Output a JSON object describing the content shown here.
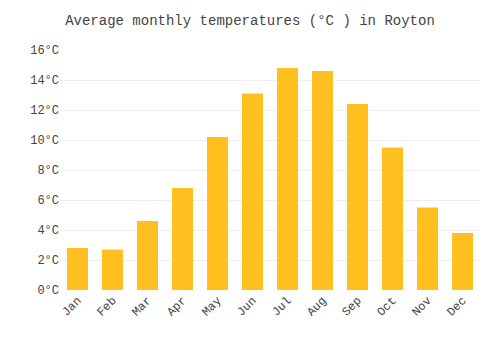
{
  "chart_data": {
    "type": "bar",
    "title": "Average monthly temperatures (°C ) in Royton",
    "categories": [
      "Jan",
      "Feb",
      "Mar",
      "Apr",
      "May",
      "Jun",
      "Jul",
      "Aug",
      "Sep",
      "Oct",
      "Nov",
      "Dec"
    ],
    "values": [
      2.8,
      2.7,
      4.6,
      6.8,
      10.2,
      13.1,
      14.8,
      14.6,
      12.4,
      9.5,
      5.5,
      3.8
    ],
    "color": "#FFC020",
    "ylim": [
      0,
      16
    ],
    "yticks": [
      {
        "value": 0,
        "label": "0°C"
      },
      {
        "value": 2,
        "label": "2°C"
      },
      {
        "value": 4,
        "label": "4°C"
      },
      {
        "value": 6,
        "label": "6°C"
      },
      {
        "value": 8,
        "label": "8°C"
      },
      {
        "value": 10,
        "label": "10°C"
      },
      {
        "value": 12,
        "label": "12°C"
      },
      {
        "value": 14,
        "label": "14°C"
      },
      {
        "value": 16,
        "label": "16°C"
      }
    ],
    "grid": true
  }
}
